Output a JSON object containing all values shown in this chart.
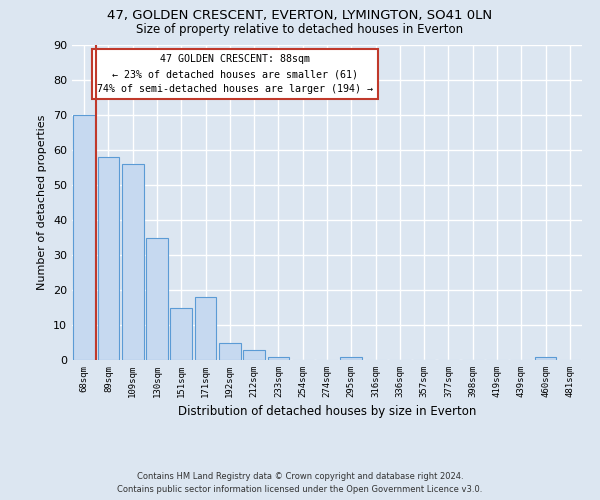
{
  "title1": "47, GOLDEN CRESCENT, EVERTON, LYMINGTON, SO41 0LN",
  "title2": "Size of property relative to detached houses in Everton",
  "xlabel": "Distribution of detached houses by size in Everton",
  "ylabel": "Number of detached properties",
  "categories": [
    "68sqm",
    "89sqm",
    "109sqm",
    "130sqm",
    "151sqm",
    "171sqm",
    "192sqm",
    "212sqm",
    "233sqm",
    "254sqm",
    "274sqm",
    "295sqm",
    "316sqm",
    "336sqm",
    "357sqm",
    "377sqm",
    "398sqm",
    "419sqm",
    "439sqm",
    "460sqm",
    "481sqm"
  ],
  "values": [
    70,
    58,
    56,
    35,
    15,
    18,
    5,
    3,
    1,
    0,
    0,
    1,
    0,
    0,
    0,
    0,
    0,
    0,
    0,
    1,
    0
  ],
  "bar_color": "#c6d9f0",
  "bar_edge_color": "#5b9bd5",
  "background_color": "#dce6f1",
  "grid_color": "#ffffff",
  "vline_color": "#c0392b",
  "annotation_box_color": "#c0392b",
  "annotation_line1": "47 GOLDEN CRESCENT: 88sqm",
  "annotation_line2": "← 23% of detached houses are smaller (61)",
  "annotation_line3": "74% of semi-detached houses are larger (194) →",
  "ylim": [
    0,
    90
  ],
  "yticks": [
    0,
    10,
    20,
    30,
    40,
    50,
    60,
    70,
    80,
    90
  ],
  "footer1": "Contains HM Land Registry data © Crown copyright and database right 2024.",
  "footer2": "Contains public sector information licensed under the Open Government Licence v3.0."
}
